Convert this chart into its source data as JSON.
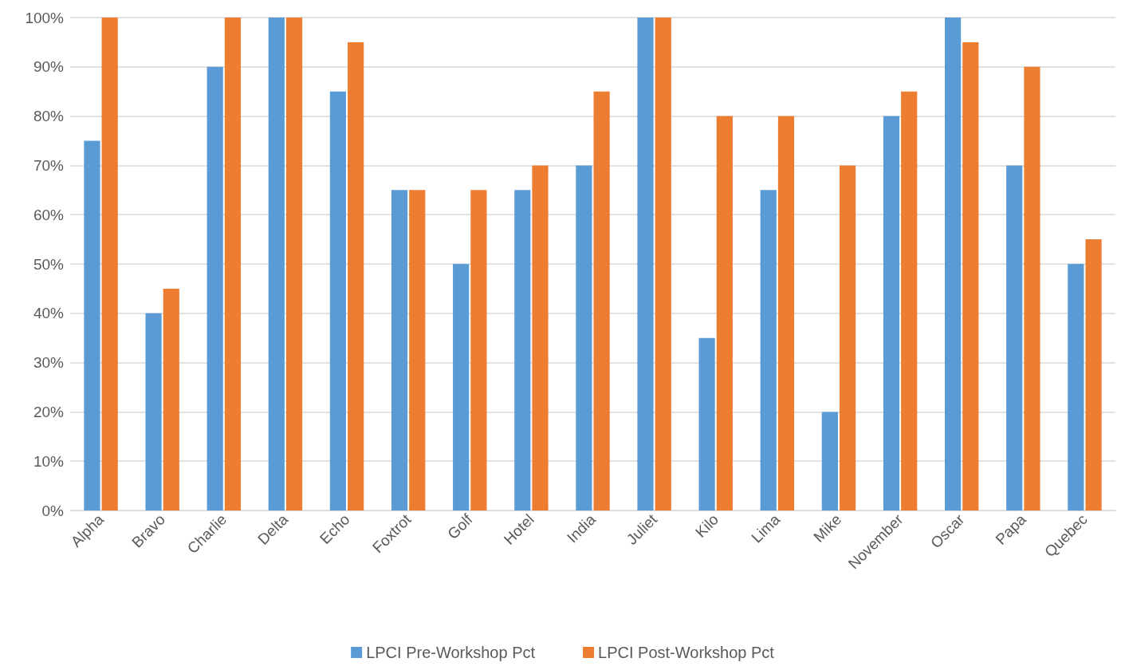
{
  "chart_data": {
    "type": "bar",
    "categories": [
      "Alpha",
      "Bravo",
      "Charlie",
      "Delta",
      "Echo",
      "Foxtrot",
      "Golf",
      "Hotel",
      "India",
      "Juliet",
      "Kilo",
      "Lima",
      "Mike",
      "November",
      "Oscar",
      "Papa",
      "Quebec"
    ],
    "series": [
      {
        "name": "LPCI Pre-Workshop Pct",
        "color": "#5b9bd5",
        "values": [
          75,
          40,
          90,
          100,
          85,
          65,
          50,
          65,
          70,
          100,
          35,
          65,
          20,
          80,
          100,
          70,
          50
        ]
      },
      {
        "name": "LPCI Post-Workshop Pct",
        "color": "#ed7d31",
        "values": [
          100,
          45,
          100,
          100,
          95,
          65,
          65,
          70,
          85,
          100,
          80,
          80,
          70,
          85,
          95,
          90,
          55
        ]
      }
    ],
    "ylim": [
      0,
      100
    ],
    "yticks": [
      {
        "value": 0,
        "label": "0%"
      },
      {
        "value": 10,
        "label": "10%"
      },
      {
        "value": 20,
        "label": "20%"
      },
      {
        "value": 30,
        "label": "30%"
      },
      {
        "value": 40,
        "label": "40%"
      },
      {
        "value": 50,
        "label": "50%"
      },
      {
        "value": 60,
        "label": "60%"
      },
      {
        "value": 70,
        "label": "70%"
      },
      {
        "value": 80,
        "label": "80%"
      },
      {
        "value": 90,
        "label": "90%"
      },
      {
        "value": 100,
        "label": "100%"
      }
    ],
    "grid": "y",
    "legend": "bottom"
  }
}
